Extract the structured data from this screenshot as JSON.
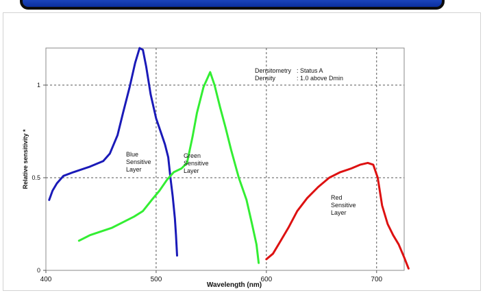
{
  "chart_data": {
    "type": "line",
    "title": "",
    "xlabel": "Wavelength (nm)",
    "ylabel": "Relative sensitivity *",
    "xlim": [
      400,
      725
    ],
    "ylim": [
      0,
      1.2
    ],
    "x_ticks": [
      400,
      500,
      600,
      700
    ],
    "x_tick_labels": [
      "400",
      "500",
      "600",
      "700"
    ],
    "y_ticks": [
      0,
      0.5,
      1
    ],
    "y_tick_labels": [
      "0",
      "0.5",
      "1"
    ],
    "grid": true,
    "grid_style": "dashed",
    "legend": "none",
    "annotation": {
      "lines": [
        {
          "label": "Densitometry",
          "value": ": Status A"
        },
        {
          "label": "Density",
          "value": ": 1.0 above  Dmin"
        }
      ]
    },
    "series": [
      {
        "label_lines": [
          "Blue",
          "Sensitive",
          "Layer"
        ],
        "color": "#1a1ab8",
        "points": [
          [
            403,
            0.38
          ],
          [
            406,
            0.43
          ],
          [
            410,
            0.47
          ],
          [
            416,
            0.51
          ],
          [
            425,
            0.53
          ],
          [
            440,
            0.56
          ],
          [
            452,
            0.59
          ],
          [
            458,
            0.63
          ],
          [
            465,
            0.73
          ],
          [
            470,
            0.85
          ],
          [
            476,
            0.99
          ],
          [
            481,
            1.12
          ],
          [
            485,
            1.2
          ],
          [
            488,
            1.19
          ],
          [
            491,
            1.1
          ],
          [
            495,
            0.95
          ],
          [
            500,
            0.82
          ],
          [
            504,
            0.75
          ],
          [
            508,
            0.68
          ],
          [
            511,
            0.61
          ],
          [
            513,
            0.5
          ],
          [
            515,
            0.4
          ],
          [
            517,
            0.28
          ],
          [
            518,
            0.19
          ],
          [
            519,
            0.08
          ]
        ]
      },
      {
        "label_lines": [
          "Green",
          "Sensitive",
          "Layer"
        ],
        "color": "#33ee33",
        "points": [
          [
            430,
            0.16
          ],
          [
            440,
            0.19
          ],
          [
            450,
            0.21
          ],
          [
            460,
            0.23
          ],
          [
            470,
            0.26
          ],
          [
            480,
            0.29
          ],
          [
            488,
            0.32
          ],
          [
            496,
            0.38
          ],
          [
            503,
            0.43
          ],
          [
            510,
            0.49
          ],
          [
            516,
            0.53
          ],
          [
            523,
            0.55
          ],
          [
            528,
            0.58
          ],
          [
            533,
            0.72
          ],
          [
            537,
            0.85
          ],
          [
            543,
            0.99
          ],
          [
            549,
            1.07
          ],
          [
            553,
            1.0
          ],
          [
            558,
            0.88
          ],
          [
            563,
            0.77
          ],
          [
            568,
            0.65
          ],
          [
            575,
            0.5
          ],
          [
            582,
            0.38
          ],
          [
            587,
            0.25
          ],
          [
            591,
            0.14
          ],
          [
            593,
            0.04
          ]
        ]
      },
      {
        "label_lines": [
          "Red",
          "Sensitive",
          "Layer"
        ],
        "color": "#dd1111",
        "points": [
          [
            600,
            0.06
          ],
          [
            606,
            0.09
          ],
          [
            612,
            0.15
          ],
          [
            620,
            0.23
          ],
          [
            628,
            0.32
          ],
          [
            637,
            0.39
          ],
          [
            647,
            0.45
          ],
          [
            657,
            0.5
          ],
          [
            667,
            0.53
          ],
          [
            677,
            0.55
          ],
          [
            685,
            0.57
          ],
          [
            692,
            0.58
          ],
          [
            697,
            0.57
          ],
          [
            701,
            0.5
          ],
          [
            705,
            0.35
          ],
          [
            710,
            0.25
          ],
          [
            715,
            0.19
          ],
          [
            720,
            0.14
          ],
          [
            725,
            0.07
          ],
          [
            729,
            0.01
          ]
        ]
      }
    ]
  }
}
